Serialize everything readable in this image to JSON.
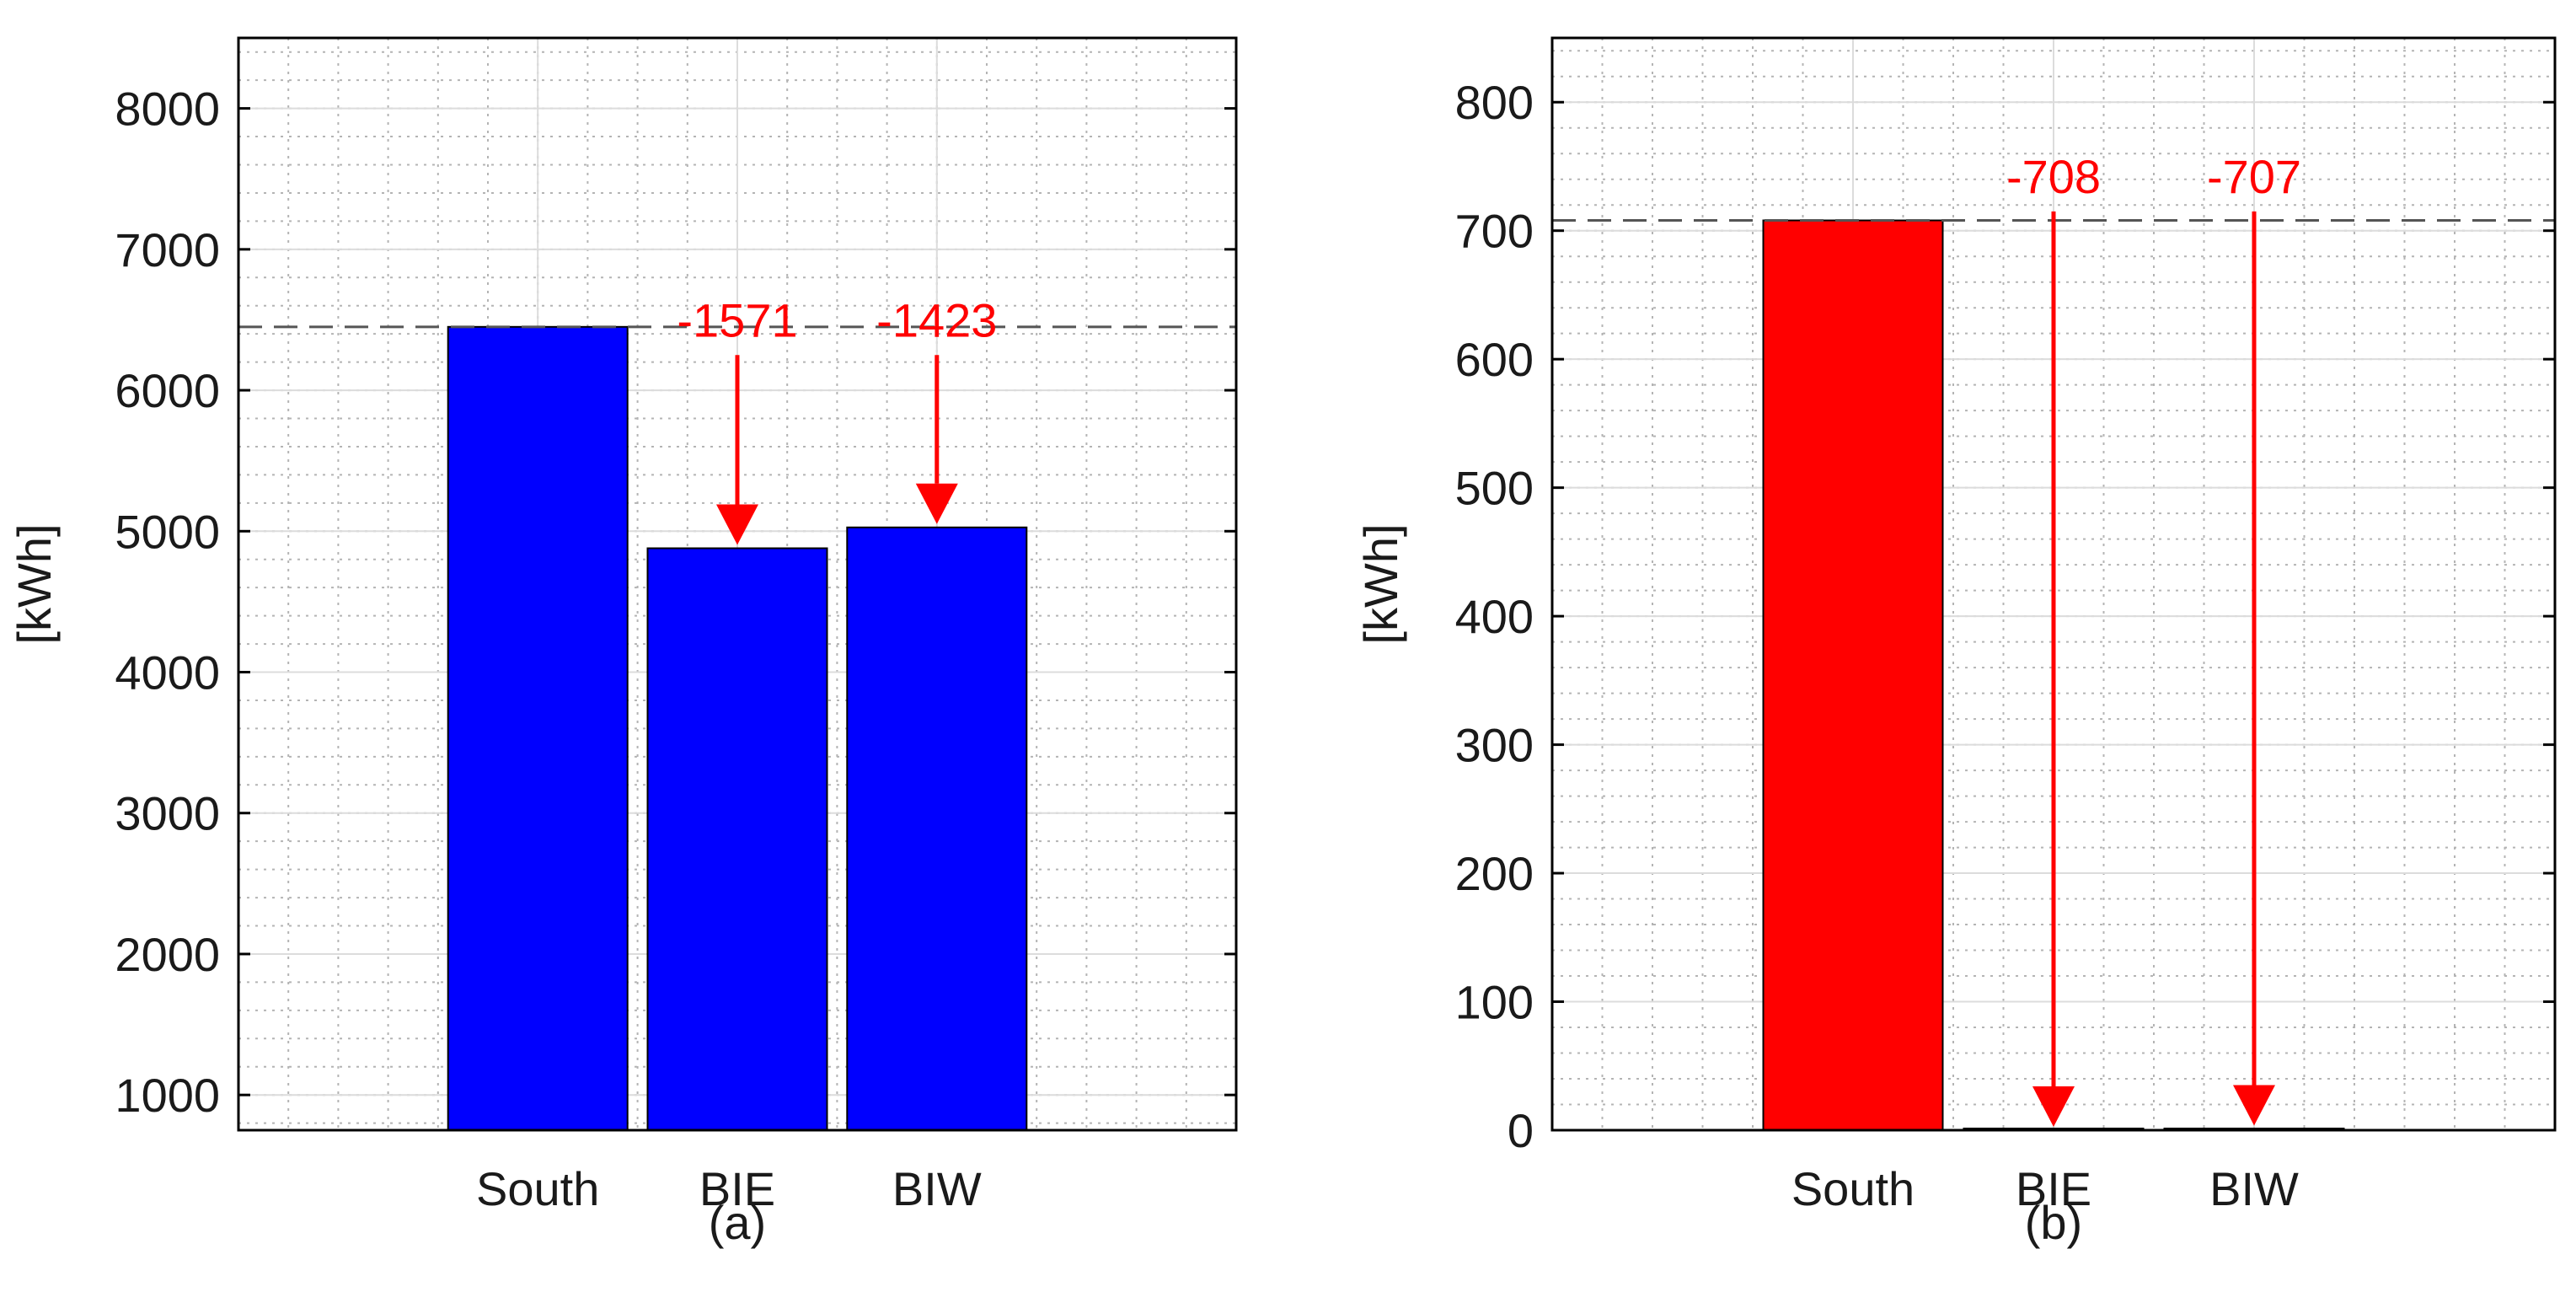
{
  "chart_data": [
    {
      "type": "bar",
      "panel_label": "(a)",
      "categories": [
        "South",
        "BIE",
        "BIW"
      ],
      "values": [
        6450,
        4879,
        5027
      ],
      "ylabel": "[kWh]",
      "ylim": [
        750,
        8500
      ],
      "yticks": [
        1000,
        2000,
        3000,
        4000,
        5000,
        6000,
        7000,
        8000
      ],
      "bar_color": "#0000ff",
      "reference_line": 6450,
      "grid": true,
      "minor_grid": true,
      "annotations": [
        {
          "category": "BIE",
          "label": "-1571",
          "from": 6250,
          "to": 4879
        },
        {
          "category": "BIW",
          "label": "-1423",
          "from": 6250,
          "to": 5027
        }
      ]
    },
    {
      "type": "bar",
      "panel_label": "(b)",
      "categories": [
        "South",
        "BIE",
        "BIW"
      ],
      "values": [
        708,
        0,
        1
      ],
      "ylabel": "[kWh]",
      "ylim": [
        0,
        850
      ],
      "yticks": [
        0,
        100,
        200,
        300,
        400,
        500,
        600,
        700,
        800
      ],
      "bar_color": "#ff0000",
      "reference_line": 708,
      "grid": true,
      "minor_grid": true,
      "annotations": [
        {
          "category": "BIE",
          "label": "-708",
          "from": 715,
          "to": 0
        },
        {
          "category": "BIW",
          "label": "-707",
          "from": 715,
          "to": 1
        }
      ]
    }
  ],
  "colors": {
    "annotation": "#ff0000",
    "major_grid": "#dcdcdc",
    "minor_grid": "#b4b4b4",
    "reference_line": "#555555"
  }
}
